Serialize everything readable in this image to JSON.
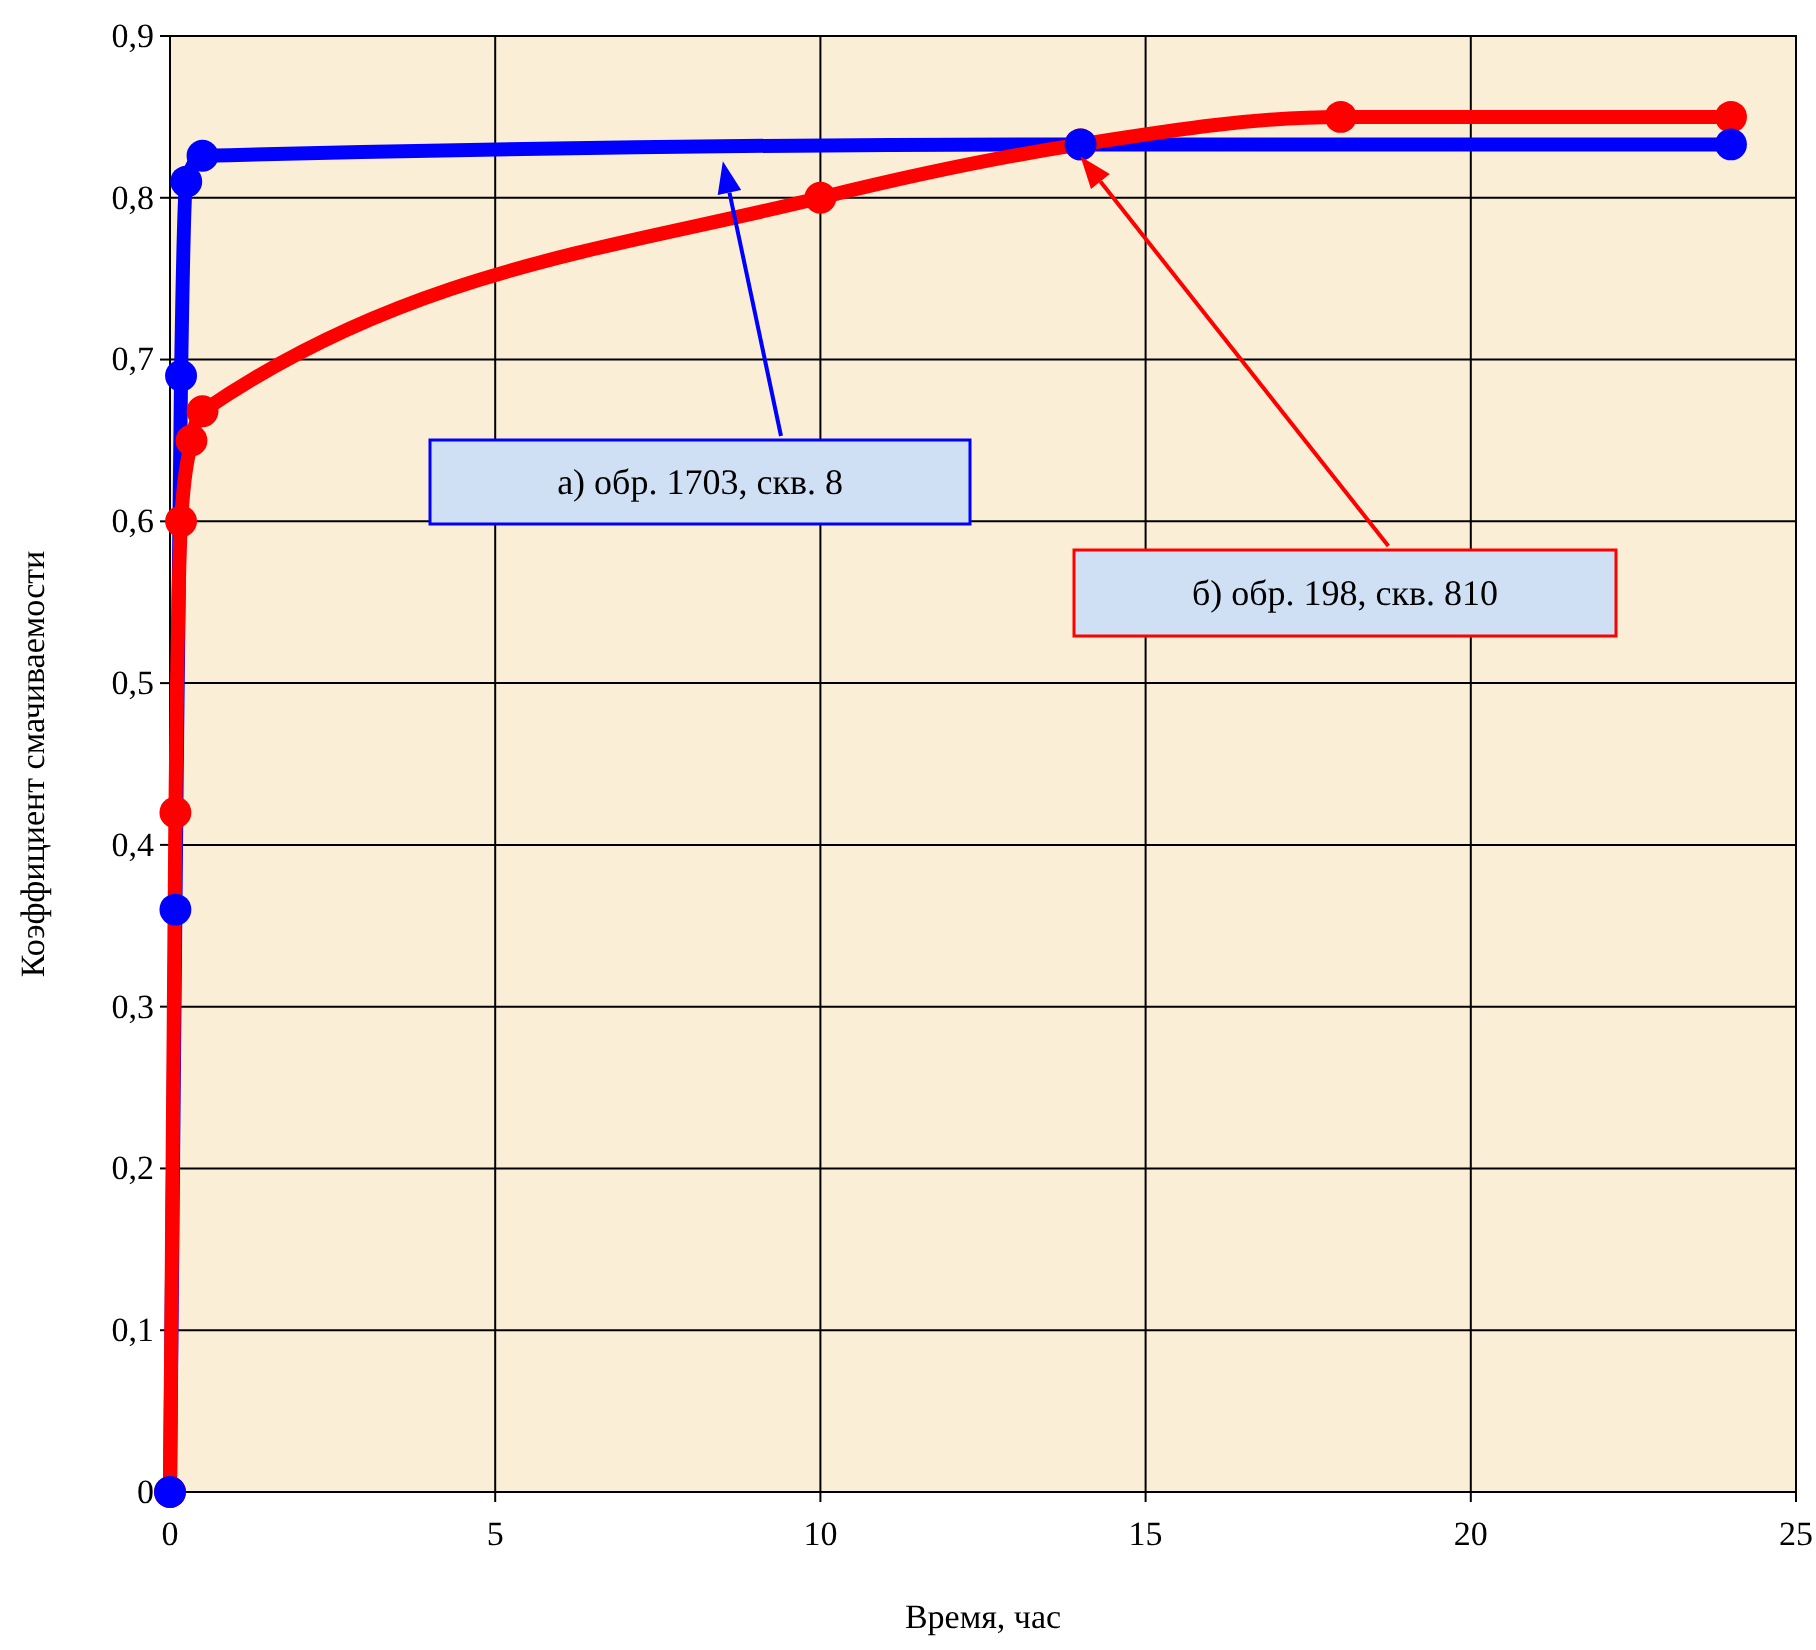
{
  "chart_data": {
    "type": "line",
    "xlabel": "Время, час",
    "ylabel": "Коэффициент смачиваемости",
    "xlim": [
      0,
      25
    ],
    "xticks": [
      0,
      5,
      10,
      15,
      20,
      25
    ],
    "ylim": [
      0,
      0.9
    ],
    "yticks": [
      {
        "value": 0,
        "label": "0"
      },
      {
        "value": 0.1,
        "label": "0,1"
      },
      {
        "value": 0.2,
        "label": "0,2"
      },
      {
        "value": 0.3,
        "label": "0,3"
      },
      {
        "value": 0.4,
        "label": "0,4"
      },
      {
        "value": 0.5,
        "label": "0,5"
      },
      {
        "value": 0.6,
        "label": "0,6"
      },
      {
        "value": 0.7,
        "label": "0,7"
      },
      {
        "value": 0.8,
        "label": "0,8"
      },
      {
        "value": 0.9,
        "label": "0,9"
      }
    ],
    "grid": true,
    "marker": "circle",
    "line_style": "solid",
    "series": [
      {
        "color": "#0000ff",
        "x": [
          0,
          0.083,
          0.17,
          0.25,
          0.5,
          14,
          24
        ],
        "values": [
          0,
          0.36,
          0.69,
          0.81,
          0.826,
          0.833,
          0.833
        ]
      },
      {
        "color": "#ff0000",
        "x": [
          0,
          0.083,
          0.17,
          0.33,
          0.5,
          10,
          14,
          18,
          24
        ],
        "values": [
          0,
          0.42,
          0.6,
          0.65,
          0.668,
          0.8,
          0.833,
          0.85,
          0.85
        ]
      }
    ],
    "annotations": [
      "а) обр. 1703, скв. 8",
      "б) обр. 198, скв. 810"
    ]
  }
}
